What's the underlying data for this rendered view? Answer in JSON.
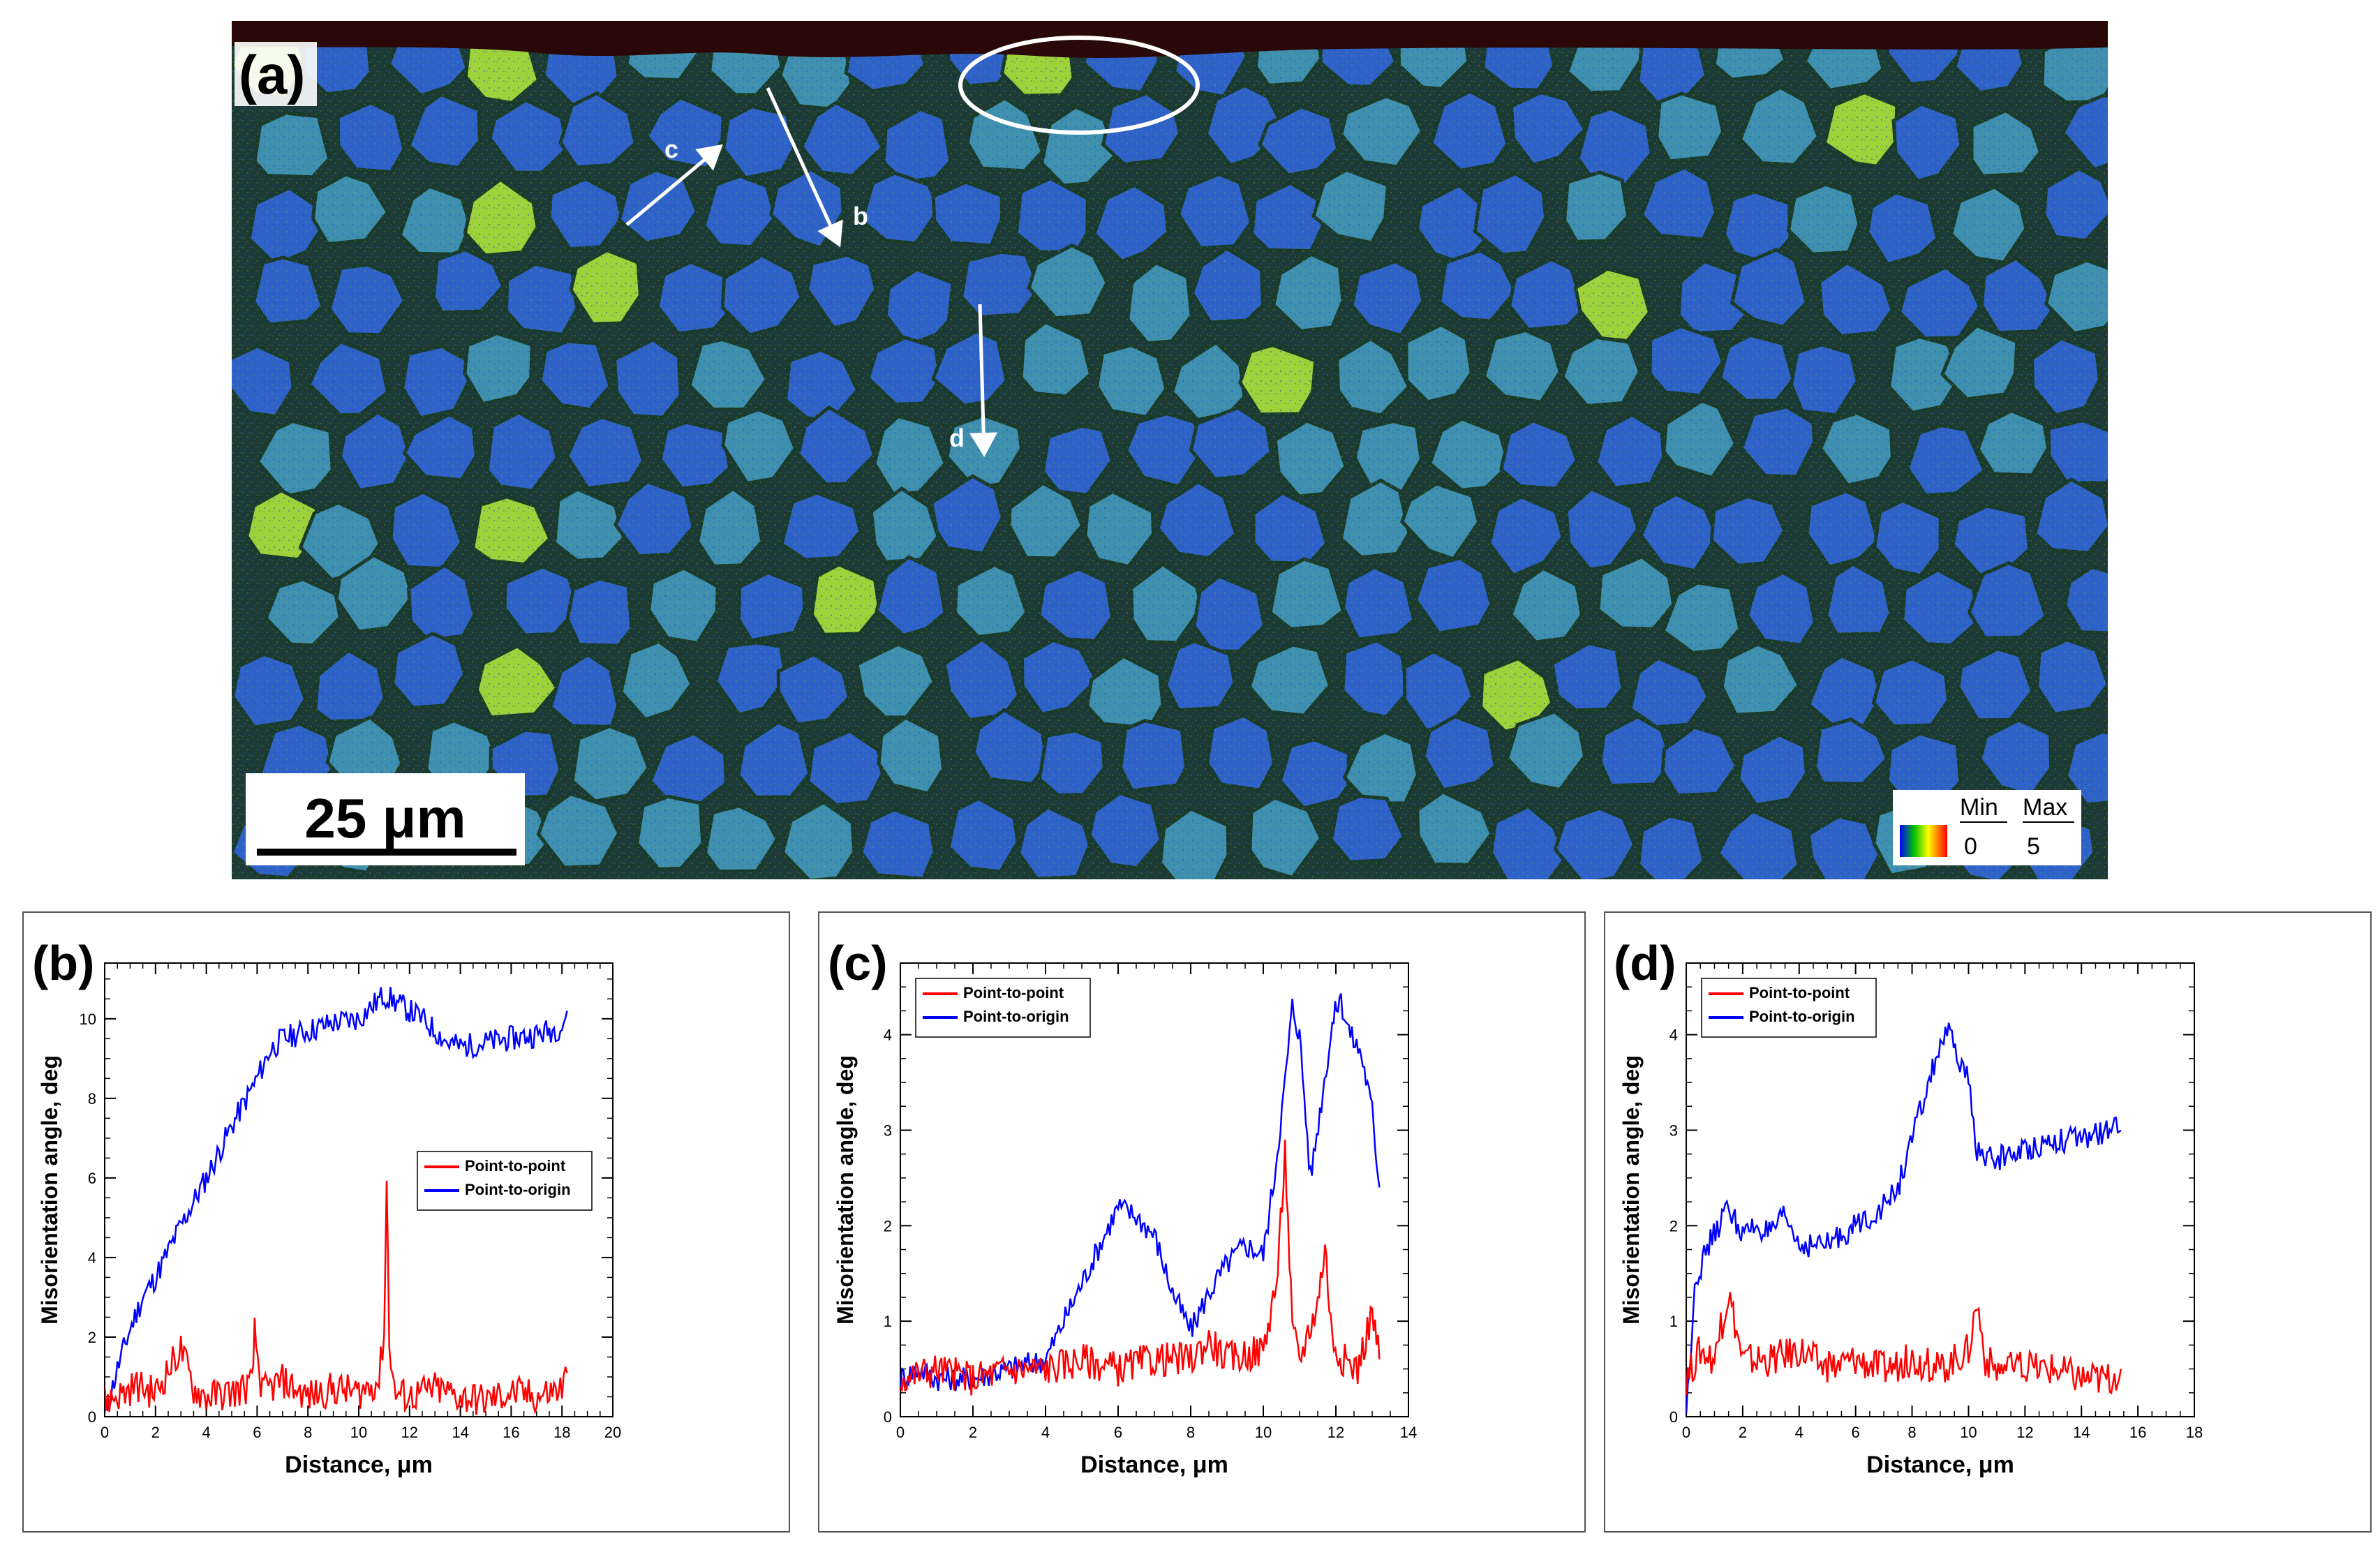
{
  "map": {
    "panel_label": "(a)",
    "scale_bar_label": "25 μm",
    "legend": {
      "min_label": "Min",
      "max_label": "Max",
      "min_value": "0",
      "max_value": "5"
    },
    "arrows": [
      {
        "label": "b"
      },
      {
        "label": "c"
      },
      {
        "label": "d"
      }
    ],
    "colors": {
      "grain": "#2f62c8",
      "grain_alt": "#3f8fb0",
      "boundary": "#1a3a2a",
      "strained": "#9fd23a",
      "surface": "#1a0606"
    }
  },
  "chart_data": [
    {
      "panel_label": "(b)",
      "type": "line",
      "xlabel": "Distance, μm",
      "ylabel": "Misorientation angle, deg",
      "xlim": [
        0,
        20
      ],
      "ylim": [
        0,
        11.4
      ],
      "xticks": [
        0,
        2,
        4,
        6,
        8,
        10,
        12,
        14,
        16,
        18,
        20
      ],
      "yticks": [
        0,
        2,
        4,
        6,
        8,
        10
      ],
      "legend_position": "center-right",
      "series": [
        {
          "name": "Point-to-point",
          "color": "#ff0000",
          "x": [
            0,
            0.8,
            1.2,
            2.0,
            2.8,
            3.0,
            3.5,
            4.0,
            5.0,
            5.8,
            5.9,
            6.2,
            7.0,
            8.0,
            9.0,
            10.0,
            10.8,
            11.0,
            11.1,
            11.2,
            11.4,
            12.0,
            13.0,
            14.0,
            15.0,
            16.0,
            17.0,
            18.0,
            18.2
          ],
          "values": [
            0.4,
            0.6,
            0.8,
            0.6,
            1.5,
            1.7,
            0.7,
            0.5,
            0.6,
            0.8,
            2.1,
            0.6,
            0.9,
            0.5,
            0.7,
            0.6,
            0.9,
            2.2,
            5.9,
            2.0,
            0.6,
            0.5,
            0.7,
            0.5,
            0.4,
            0.6,
            0.5,
            0.7,
            1.1
          ]
        },
        {
          "name": "Point-to-origin",
          "color": "#0000ff",
          "x": [
            0,
            0.5,
            1.0,
            1.5,
            2.0,
            3.0,
            4.0,
            5.0,
            6.0,
            6.5,
            7.0,
            8.0,
            9.0,
            10.0,
            10.5,
            11.0,
            11.5,
            12.0,
            12.5,
            13.0,
            13.5,
            14.0,
            15.0,
            16.0,
            17.0,
            18.0,
            18.2
          ],
          "values": [
            0,
            1.2,
            2.2,
            3.0,
            3.5,
            4.8,
            6.0,
            7.3,
            8.5,
            9.2,
            9.5,
            9.7,
            9.9,
            10.0,
            10.3,
            10.6,
            10.4,
            10.2,
            10.0,
            9.7,
            9.4,
            9.3,
            9.4,
            9.5,
            9.6,
            9.8,
            10.2
          ]
        }
      ]
    },
    {
      "panel_label": "(c)",
      "type": "line",
      "xlabel": "Distance, μm",
      "ylabel": "Misorientation angle, deg",
      "xlim": [
        0,
        14
      ],
      "ylim": [
        0,
        4.75
      ],
      "xticks": [
        0,
        2,
        4,
        6,
        8,
        10,
        12,
        14
      ],
      "yticks": [
        0,
        1,
        2,
        3,
        4
      ],
      "legend_position": "top-left",
      "series": [
        {
          "name": "Point-to-point",
          "color": "#ff0000",
          "x": [
            0,
            1,
            2,
            3,
            4,
            5,
            6,
            7,
            8,
            8.5,
            9,
            10,
            10.4,
            10.6,
            10.8,
            11,
            11.5,
            11.7,
            11.9,
            12.2,
            12.6,
            13,
            13.2
          ],
          "values": [
            0.4,
            0.5,
            0.4,
            0.5,
            0.5,
            0.6,
            0.5,
            0.6,
            0.6,
            0.8,
            0.6,
            0.7,
            1.5,
            2.8,
            0.9,
            0.6,
            1.2,
            1.8,
            0.8,
            0.6,
            0.5,
            1.1,
            0.6
          ]
        },
        {
          "name": "Point-to-origin",
          "color": "#0000ff",
          "x": [
            0,
            0.5,
            1,
            2,
            3,
            4,
            4.5,
            5,
            5.5,
            6,
            6.5,
            7,
            7.5,
            8,
            8.5,
            9,
            9.5,
            10,
            10.3,
            10.6,
            10.8,
            11,
            11.3,
            11.6,
            11.9,
            12.1,
            12.4,
            12.7,
            13,
            13.2
          ],
          "values": [
            0.4,
            0.5,
            0.4,
            0.4,
            0.5,
            0.6,
            1.0,
            1.4,
            1.8,
            2.2,
            2.1,
            1.9,
            1.3,
            0.9,
            1.3,
            1.6,
            1.8,
            1.7,
            2.5,
            3.5,
            4.3,
            4.0,
            2.5,
            3.3,
            4.1,
            4.4,
            4.0,
            3.8,
            3.2,
            2.4
          ]
        }
      ]
    },
    {
      "panel_label": "(d)",
      "type": "line",
      "xlabel": "Distance, μm",
      "ylabel": "Misorientation angle, deg",
      "xlim": [
        0,
        18
      ],
      "ylim": [
        0,
        4.75
      ],
      "xticks": [
        0,
        2,
        4,
        6,
        8,
        10,
        12,
        14,
        16,
        18
      ],
      "yticks": [
        0,
        1,
        2,
        3,
        4
      ],
      "legend_position": "top-left",
      "series": [
        {
          "name": "Point-to-point",
          "color": "#ff0000",
          "x": [
            0,
            0.5,
            1,
            1.5,
            2,
            3,
            4,
            5,
            6,
            7,
            8,
            9,
            10,
            10.3,
            10.6,
            11,
            12,
            13,
            14,
            15,
            15.4
          ],
          "values": [
            0.4,
            0.7,
            0.6,
            1.3,
            0.6,
            0.6,
            0.7,
            0.5,
            0.6,
            0.5,
            0.6,
            0.5,
            0.7,
            1.2,
            0.6,
            0.5,
            0.5,
            0.5,
            0.4,
            0.4,
            0.5
          ]
        },
        {
          "name": "Point-to-origin",
          "color": "#0000ff",
          "x": [
            0,
            0.3,
            0.8,
            1.5,
            2,
            2.5,
            3,
            3.5,
            4,
            5,
            6,
            7,
            7.5,
            8,
            8.5,
            9,
            9.3,
            9.7,
            10,
            10.3,
            10.6,
            11,
            12,
            13,
            14,
            15,
            15.4
          ],
          "values": [
            0,
            1.4,
            1.8,
            2.2,
            1.9,
            2.0,
            1.9,
            2.1,
            1.8,
            1.8,
            2.0,
            2.2,
            2.4,
            2.9,
            3.4,
            3.9,
            4.0,
            3.7,
            3.5,
            2.8,
            2.7,
            2.7,
            2.8,
            2.9,
            2.9,
            3.0,
            3.0
          ]
        }
      ]
    }
  ]
}
